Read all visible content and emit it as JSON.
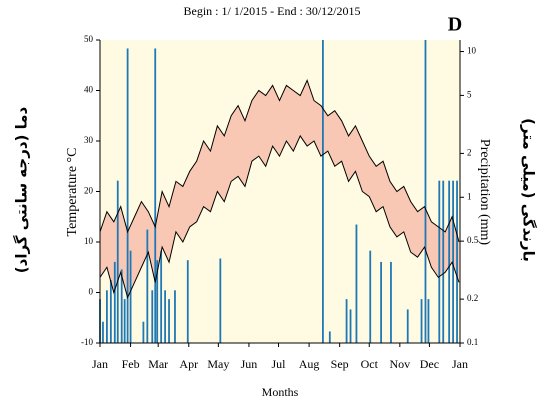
{
  "chart_data": {
    "type": "climate",
    "title": "Begin : 1/ 1/2015 - End :  30/12/2015",
    "panel_label": "D",
    "x_label": "Months",
    "y_label": "Temperature °C",
    "y2_label": "Precipitation (mm)",
    "y_label_fa": "دما (درجه سانتی گراد)",
    "y2_label_fa": "بارندگی (میلی متر)",
    "xlim": [
      1,
      366
    ],
    "xticks": [
      {
        "value": 1,
        "label": "Jan"
      },
      {
        "value": 32,
        "label": "Feb"
      },
      {
        "value": 60,
        "label": "Mar"
      },
      {
        "value": 91,
        "label": "Apr"
      },
      {
        "value": 121,
        "label": "May"
      },
      {
        "value": 152,
        "label": "Jun"
      },
      {
        "value": 182,
        "label": "Jul"
      },
      {
        "value": 213,
        "label": "Aug"
      },
      {
        "value": 244,
        "label": "Sep"
      },
      {
        "value": 274,
        "label": "Oct"
      },
      {
        "value": 305,
        "label": "Nov"
      },
      {
        "value": 335,
        "label": "Dec"
      },
      {
        "value": 366,
        "label": "Jan"
      }
    ],
    "ylim": [
      -10,
      50
    ],
    "yticks": [
      -10,
      0,
      10,
      20,
      30,
      40,
      50
    ],
    "y2lim": [
      0.1,
      12
    ],
    "y2ticks": [
      0.1,
      0.2,
      0.5,
      1,
      2,
      5,
      10
    ],
    "y2_log": true,
    "background": "#fffbe2",
    "band_color": "#f8c8b4",
    "x": [
      1,
      8,
      15,
      22,
      29,
      36,
      43,
      50,
      57,
      64,
      71,
      78,
      85,
      92,
      99,
      106,
      113,
      120,
      127,
      134,
      141,
      148,
      155,
      162,
      169,
      176,
      183,
      190,
      197,
      204,
      211,
      218,
      225,
      232,
      239,
      246,
      253,
      260,
      267,
      274,
      281,
      288,
      295,
      302,
      309,
      316,
      323,
      330,
      337,
      344,
      351,
      358,
      365
    ],
    "series": [
      {
        "color": "#000000",
        "values": [
          12,
          16,
          14,
          17,
          12,
          15,
          18,
          16,
          13,
          20,
          17,
          22,
          21,
          24,
          26,
          30,
          28,
          33,
          31,
          35,
          37,
          34,
          38,
          40,
          39,
          41,
          38,
          41,
          40,
          39,
          42,
          38,
          37,
          35,
          36,
          34,
          31,
          33,
          30,
          27,
          25,
          26,
          22,
          20,
          21,
          18,
          16,
          17,
          14,
          13,
          12,
          15,
          10
        ]
      },
      {
        "color": "#000000",
        "values": [
          3,
          5,
          0,
          4,
          -1,
          2,
          5,
          8,
          2,
          9,
          6,
          12,
          10,
          13,
          14,
          17,
          16,
          20,
          18,
          22,
          23,
          21,
          26,
          27,
          25,
          29,
          27,
          30,
          28,
          31,
          29,
          30,
          27,
          28,
          25,
          26,
          22,
          24,
          20,
          19,
          16,
          17,
          13,
          11,
          12,
          8,
          7,
          9,
          5,
          3,
          4,
          6,
          2
        ]
      }
    ],
    "bars": {
      "axis": "y2",
      "color": "#1f78b4",
      "x": [
        1,
        4,
        8,
        12,
        16,
        19,
        23,
        26,
        29,
        32,
        35,
        45,
        49,
        54,
        57,
        59,
        63,
        67,
        71,
        77,
        90,
        123,
        227,
        234,
        251,
        255,
        261,
        275,
        286,
        296,
        313,
        327,
        331,
        334,
        345,
        349,
        355,
        359,
        363
      ],
      "values": [
        0.2,
        0.14,
        0.23,
        0.27,
        0.36,
        1.3,
        0.32,
        0.2,
        10.5,
        0.43,
        0.1,
        0.14,
        0.6,
        0.23,
        10.5,
        0.37,
        0.43,
        0.23,
        0.2,
        0.23,
        0.37,
        0.38,
        12,
        0.12,
        0.2,
        0.17,
        0.65,
        0.43,
        0.36,
        0.36,
        0.17,
        0.2,
        12,
        0.2,
        1.3,
        1.3,
        1.3,
        1.3,
        1.3
      ]
    }
  }
}
